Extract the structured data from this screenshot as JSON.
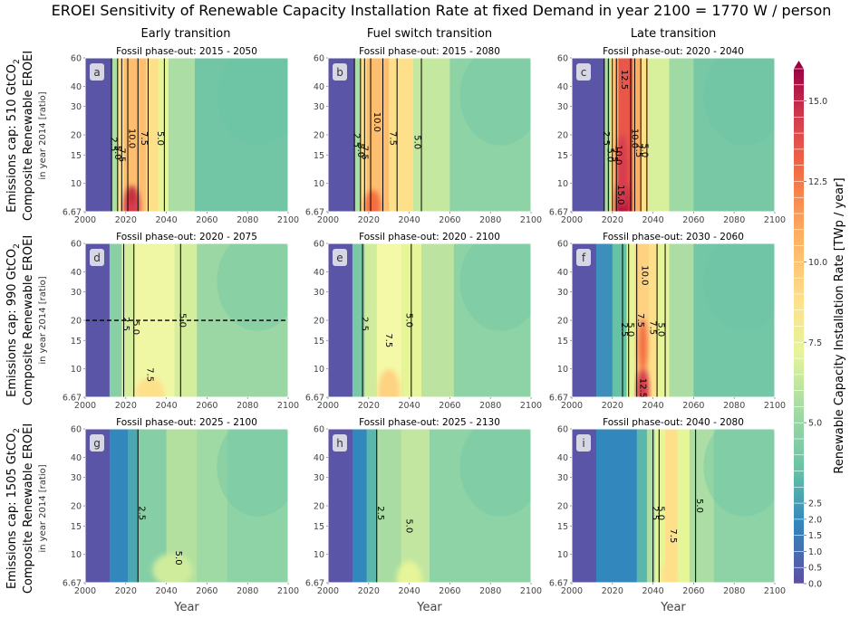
{
  "title": "EROEI Sensitivity of Renewable Capacity Installation Rate at fixed Demand in year 2100 = 1770 W / person",
  "columns": [
    "Early transition",
    "Fuel switch transition",
    "Late transition"
  ],
  "rows": [
    {
      "line1": "Emissions cap: 510 GtCO",
      "sub": "2",
      "line2": "Composite Renewable EROEI",
      "line3": "in year 2014 [ratio]"
    },
    {
      "line1": "Emissions cap: 990 GtCO",
      "sub": "2",
      "line2": "Composite Renewable EROEI",
      "line3": "in year 2014 [ratio]"
    },
    {
      "line1": "Emissions cap: 1505 GtCO",
      "sub": "2",
      "line2": "Composite Renewable EROEI",
      "line3": "in year 2014 [ratio]"
    }
  ],
  "xlabel": "Year",
  "colorbar_label": "Renewable Capacity Installation Rate [TWp / year]",
  "colorbar_ticks": [
    "0.0",
    "0.5",
    "1.0",
    "1.5",
    "2.0",
    "2.5",
    "5.0",
    "7.5",
    "10.0",
    "12.5",
    "15.0"
  ],
  "colors": {
    "panel_label_bg": "#e4e4ec",
    "grid": "#ffffff",
    "contour": "#000000"
  },
  "chart_data": {
    "type": "heatmap",
    "x_ticks": [
      2000,
      2020,
      2040,
      2060,
      2080,
      2100
    ],
    "y_ticks": [
      "6.67",
      "10",
      "15",
      "20",
      "30",
      "40",
      "60"
    ],
    "xlim": [
      2000,
      2100
    ],
    "ylim": [
      6.67,
      60
    ],
    "y_scale": "log",
    "colorbar": {
      "bounds": [
        0.0,
        0.5,
        1.0,
        1.5,
        2.0,
        2.5,
        3.0,
        3.5,
        4.0,
        4.5,
        5.0,
        5.5,
        6.0,
        6.5,
        7.0,
        7.5,
        8.0,
        8.5,
        9.0,
        9.5,
        10.0,
        10.5,
        11.0,
        11.5,
        12.0,
        12.5,
        13.0,
        13.5,
        14.0,
        14.5,
        15.0,
        15.5,
        16.0
      ],
      "label": "Renewable Capacity Installation Rate [TWp / year]",
      "extend": "max"
    },
    "panels": [
      {
        "label": "a",
        "subtitle": "Fossil phase-out: 2015 - 2050",
        "contours": [
          {
            "value": "2.5",
            "x": 2014,
            "y": 17.5
          },
          {
            "value": "5.0",
            "x": 2016,
            "y": 15.5
          },
          {
            "value": "7.5",
            "x": 2018,
            "y": 15
          },
          {
            "value": "10.0",
            "x": 2023,
            "y": 19
          },
          {
            "value": "7.5",
            "x": 2029,
            "y": 19
          },
          {
            "value": "5.0",
            "x": 2037,
            "y": 19
          }
        ]
      },
      {
        "label": "b",
        "subtitle": "Fossil phase-out: 2015 - 2080",
        "contours": [
          {
            "value": "2.5",
            "x": 2014,
            "y": 18.5
          },
          {
            "value": "5.0",
            "x": 2016,
            "y": 16
          },
          {
            "value": "7.5",
            "x": 2018,
            "y": 15.5
          },
          {
            "value": "10.0",
            "x": 2024,
            "y": 24
          },
          {
            "value": "7.5",
            "x": 2032,
            "y": 19
          },
          {
            "value": "5.0",
            "x": 2044,
            "y": 18
          }
        ]
      },
      {
        "label": "c",
        "subtitle": "Fossil phase-out: 2020 - 2040",
        "contours": [
          {
            "value": "2.5",
            "x": 2017,
            "y": 19
          },
          {
            "value": "5.0",
            "x": 2019,
            "y": 15
          },
          {
            "value": "7.5",
            "x": 2021,
            "y": 15
          },
          {
            "value": "10.0",
            "x": 2023,
            "y": 15
          },
          {
            "value": "12.5",
            "x": 2026,
            "y": 44
          },
          {
            "value": "15.0",
            "x": 2024,
            "y": 8.5
          },
          {
            "value": "10.0",
            "x": 2031,
            "y": 19
          },
          {
            "value": "7.5",
            "x": 2033,
            "y": 16
          },
          {
            "value": "5.0",
            "x": 2036,
            "y": 16
          }
        ]
      },
      {
        "label": "d",
        "subtitle": "Fossil phase-out: 2020 - 2075",
        "contours": [
          {
            "value": "2.5",
            "x": 2020,
            "y": 19
          },
          {
            "value": "5.0",
            "x": 2025,
            "y": 18
          },
          {
            "value": "7.5",
            "x": 2032,
            "y": 9.2
          },
          {
            "value": "5.0",
            "x": 2048,
            "y": 20
          }
        ],
        "reference_line": 20
      },
      {
        "label": "e",
        "subtitle": "Fossil phase-out: 2020 - 2100",
        "contours": [
          {
            "value": "2.5",
            "x": 2018,
            "y": 19
          },
          {
            "value": "5.0",
            "x": 2040,
            "y": 20
          },
          {
            "value": "7.5",
            "x": 2030,
            "y": 15
          }
        ]
      },
      {
        "label": "f",
        "subtitle": "Fossil phase-out: 2030 - 2060",
        "contours": [
          {
            "value": "2.5",
            "x": 2026,
            "y": 17.5
          },
          {
            "value": "5.0",
            "x": 2029,
            "y": 17.5
          },
          {
            "value": "7.5",
            "x": 2034,
            "y": 20
          },
          {
            "value": "10.0",
            "x": 2036,
            "y": 38
          },
          {
            "value": "12.5",
            "x": 2035,
            "y": 7.6
          },
          {
            "value": "7.5",
            "x": 2040,
            "y": 18
          },
          {
            "value": "5.0",
            "x": 2044,
            "y": 17.5
          }
        ]
      },
      {
        "label": "g",
        "subtitle": "Fossil phase-out: 2025 - 2100",
        "contours": [
          {
            "value": "2.5",
            "x": 2028,
            "y": 18
          },
          {
            "value": "5.0",
            "x": 2046,
            "y": 9.5
          }
        ]
      },
      {
        "label": "h",
        "subtitle": "Fossil phase-out: 2025 - 2130",
        "contours": [
          {
            "value": "2.5",
            "x": 2026,
            "y": 18
          },
          {
            "value": "5.0",
            "x": 2040,
            "y": 15
          }
        ]
      },
      {
        "label": "i",
        "subtitle": "Fossil phase-out: 2040 - 2080",
        "contours": [
          {
            "value": "2.5",
            "x": 2041,
            "y": 18
          },
          {
            "value": "5.0",
            "x": 2044,
            "y": 18
          },
          {
            "value": "7.5",
            "x": 2050,
            "y": 13
          },
          {
            "value": "5.0",
            "x": 2063,
            "y": 20
          }
        ]
      }
    ]
  }
}
